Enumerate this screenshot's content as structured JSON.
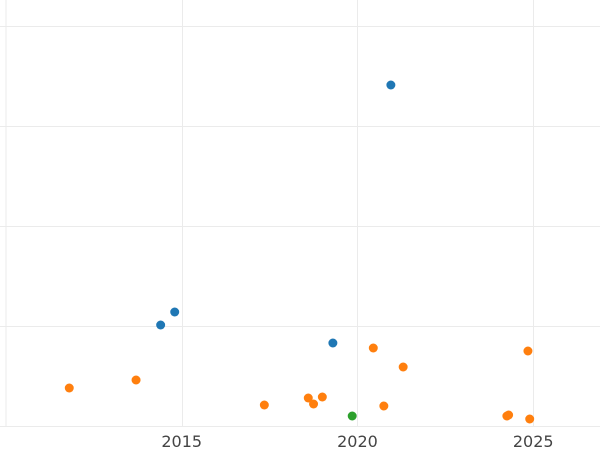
{
  "chart_data": {
    "type": "scatter",
    "title": "",
    "xlabel": "",
    "ylabel": "",
    "xlim": [
      2010.0,
      2026.9
    ],
    "ylim": [
      0,
      4
    ],
    "grid": true,
    "x_ticks": [
      2015,
      2020,
      2025
    ],
    "y_ticks": [
      0,
      1,
      2,
      3,
      4
    ],
    "series": [
      {
        "color": "#1f77b4",
        "points": [
          {
            "x": 2014.4,
            "y": 1.01
          },
          {
            "x": 2014.8,
            "y": 1.14
          },
          {
            "x": 2019.3,
            "y": 0.83
          },
          {
            "x": 2020.95,
            "y": 3.41
          }
        ]
      },
      {
        "color": "#ff7f0e",
        "points": [
          {
            "x": 2011.8,
            "y": 0.38
          },
          {
            "x": 2013.7,
            "y": 0.46
          },
          {
            "x": 2017.35,
            "y": 0.21
          },
          {
            "x": 2018.6,
            "y": 0.28
          },
          {
            "x": 2018.75,
            "y": 0.22
          },
          {
            "x": 2019.0,
            "y": 0.29
          },
          {
            "x": 2020.45,
            "y": 0.78
          },
          {
            "x": 2020.75,
            "y": 0.2
          },
          {
            "x": 2021.3,
            "y": 0.59
          },
          {
            "x": 2024.25,
            "y": 0.1
          },
          {
            "x": 2024.3,
            "y": 0.11
          },
          {
            "x": 2024.85,
            "y": 0.75
          },
          {
            "x": 2024.9,
            "y": 0.07
          }
        ]
      },
      {
        "color": "#2ca02c",
        "points": [
          {
            "x": 2019.85,
            "y": 0.1
          }
        ]
      }
    ]
  }
}
